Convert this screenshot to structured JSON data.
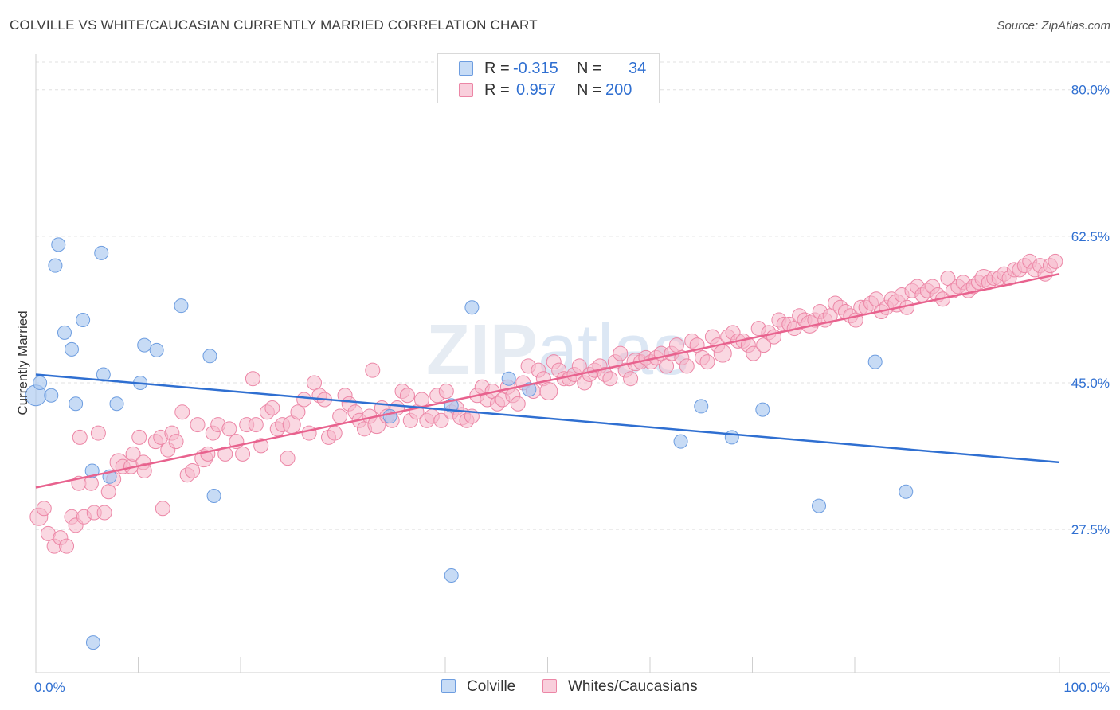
{
  "title": "COLVILLE VS WHITE/CAUCASIAN CURRENTLY MARRIED CORRELATION CHART",
  "source": "Source: ZipAtlas.com",
  "legend": {
    "r_label": "R =",
    "n_label": "N =",
    "rows": [
      {
        "r": "-0.315",
        "n": "34"
      },
      {
        "r": "0.957",
        "n": "200"
      }
    ]
  },
  "colors": {
    "blue_fill": "#a9c8f0",
    "blue_stroke": "#6d9de0",
    "blue_line": "#2f6fd1",
    "pink_fill": "#f5b8cb",
    "pink_stroke": "#ec86a6",
    "pink_line": "#e8628e",
    "axis_text": "#2f6fd1",
    "grid": "#e0e0e0"
  },
  "chart_data": {
    "type": "scatter",
    "ylabel": "Currently Married",
    "xlabel": "",
    "x_tick_labels": [
      "0.0%",
      "100.0%"
    ],
    "y_tick_labels": [
      "80.0%",
      "62.5%",
      "45.0%",
      "27.5%"
    ],
    "y_ticks": [
      80.0,
      62.5,
      45.0,
      27.5
    ],
    "xlim": [
      0,
      100
    ],
    "ylim": [
      10.4,
      83.3
    ],
    "grid": "horizontal dashed",
    "legend_position": "top-center",
    "watermark": "ZIPatlas",
    "series": [
      {
        "name": "Colville",
        "color": "blue",
        "trend": [
          [
            0,
            46.0
          ],
          [
            100,
            35.5
          ]
        ],
        "points": [
          [
            0.0,
            43.5
          ],
          [
            0.4,
            45.0
          ],
          [
            1.5,
            43.5
          ],
          [
            1.9,
            59.0
          ],
          [
            2.2,
            61.5
          ],
          [
            2.8,
            51.0
          ],
          [
            3.5,
            49.0
          ],
          [
            3.9,
            42.5
          ],
          [
            4.6,
            52.5
          ],
          [
            5.5,
            34.5
          ],
          [
            5.6,
            14.0
          ],
          [
            6.4,
            60.5
          ],
          [
            6.6,
            46.0
          ],
          [
            7.2,
            33.8
          ],
          [
            7.9,
            42.5
          ],
          [
            10.2,
            45.0
          ],
          [
            10.6,
            49.5
          ],
          [
            11.8,
            48.9
          ],
          [
            14.2,
            54.2
          ],
          [
            17.0,
            48.2
          ],
          [
            17.4,
            31.5
          ],
          [
            34.6,
            41.0
          ],
          [
            40.6,
            42.3
          ],
          [
            40.6,
            22.0
          ],
          [
            42.6,
            54.0
          ],
          [
            46.2,
            45.5
          ],
          [
            48.2,
            44.2
          ],
          [
            63.0,
            38.0
          ],
          [
            65.0,
            42.2
          ],
          [
            68.0,
            38.5
          ],
          [
            71.0,
            41.8
          ],
          [
            76.5,
            30.3
          ],
          [
            82.0,
            47.5
          ],
          [
            85.0,
            32.0
          ]
        ]
      },
      {
        "name": "Whites/Caucasians",
        "color": "pink",
        "trend": [
          [
            0,
            32.5
          ],
          [
            100,
            58.0
          ]
        ],
        "points": [
          [
            0.3,
            29.0
          ],
          [
            0.8,
            30.0
          ],
          [
            1.2,
            27.0
          ],
          [
            1.8,
            25.5
          ],
          [
            2.4,
            26.5
          ],
          [
            3.0,
            25.5
          ],
          [
            3.5,
            29.0
          ],
          [
            3.9,
            28.0
          ],
          [
            4.2,
            33.0
          ],
          [
            4.3,
            38.5
          ],
          [
            4.7,
            29.0
          ],
          [
            5.4,
            33.0
          ],
          [
            5.7,
            29.5
          ],
          [
            6.1,
            39.0
          ],
          [
            6.7,
            29.5
          ],
          [
            7.1,
            32.0
          ],
          [
            7.6,
            33.5
          ],
          [
            8.1,
            35.5
          ],
          [
            8.5,
            35.0
          ],
          [
            9.3,
            35.0
          ],
          [
            9.5,
            36.5
          ],
          [
            10.1,
            38.5
          ],
          [
            10.5,
            35.5
          ],
          [
            10.6,
            34.5
          ],
          [
            11.7,
            38.0
          ],
          [
            12.2,
            38.5
          ],
          [
            12.4,
            30.0
          ],
          [
            12.9,
            37.0
          ],
          [
            13.3,
            39.0
          ],
          [
            13.7,
            38.0
          ],
          [
            14.3,
            41.5
          ],
          [
            14.8,
            34.0
          ],
          [
            15.3,
            34.5
          ],
          [
            15.8,
            40.0
          ],
          [
            16.4,
            36.0
          ],
          [
            16.8,
            36.5
          ],
          [
            17.3,
            39.0
          ],
          [
            17.8,
            40.0
          ],
          [
            18.5,
            36.5
          ],
          [
            18.9,
            39.5
          ],
          [
            19.6,
            38.0
          ],
          [
            20.2,
            36.5
          ],
          [
            20.6,
            40.0
          ],
          [
            21.2,
            45.5
          ],
          [
            21.5,
            40.0
          ],
          [
            22.0,
            37.5
          ],
          [
            22.6,
            41.5
          ],
          [
            23.1,
            42.0
          ],
          [
            23.6,
            39.5
          ],
          [
            24.1,
            40.0
          ],
          [
            24.6,
            36.0
          ],
          [
            25.0,
            40.0
          ],
          [
            25.6,
            41.5
          ],
          [
            26.2,
            43.0
          ],
          [
            26.7,
            39.0
          ],
          [
            27.2,
            45.0
          ],
          [
            27.7,
            43.5
          ],
          [
            28.2,
            43.0
          ],
          [
            28.6,
            38.5
          ],
          [
            29.2,
            39.0
          ],
          [
            29.7,
            41.0
          ],
          [
            30.2,
            43.5
          ],
          [
            30.6,
            42.5
          ],
          [
            31.2,
            41.5
          ],
          [
            31.6,
            40.5
          ],
          [
            32.1,
            39.5
          ],
          [
            32.6,
            41.0
          ],
          [
            32.9,
            46.5
          ],
          [
            33.3,
            40.0
          ],
          [
            33.8,
            42.0
          ],
          [
            34.3,
            41.0
          ],
          [
            34.8,
            40.5
          ],
          [
            35.3,
            42.0
          ],
          [
            35.8,
            44.0
          ],
          [
            36.3,
            43.5
          ],
          [
            36.6,
            40.5
          ],
          [
            37.2,
            41.5
          ],
          [
            37.7,
            43.0
          ],
          [
            38.2,
            40.5
          ],
          [
            38.7,
            41.0
          ],
          [
            39.2,
            43.5
          ],
          [
            39.6,
            40.5
          ],
          [
            40.1,
            44.0
          ],
          [
            40.6,
            41.5
          ],
          [
            41.1,
            42.0
          ],
          [
            41.6,
            41.0
          ],
          [
            42.1,
            40.5
          ],
          [
            42.6,
            41.0
          ],
          [
            43.1,
            43.5
          ],
          [
            43.6,
            44.5
          ],
          [
            44.1,
            43.0
          ],
          [
            44.6,
            44.0
          ],
          [
            45.1,
            42.5
          ],
          [
            45.6,
            43.0
          ],
          [
            46.1,
            44.5
          ],
          [
            46.6,
            43.5
          ],
          [
            47.1,
            42.5
          ],
          [
            47.6,
            45.0
          ],
          [
            48.1,
            47.0
          ],
          [
            48.6,
            44.0
          ],
          [
            49.1,
            46.5
          ],
          [
            49.6,
            45.5
          ],
          [
            50.1,
            44.0
          ],
          [
            50.6,
            47.5
          ],
          [
            51.1,
            46.5
          ],
          [
            51.6,
            45.5
          ],
          [
            52.1,
            45.5
          ],
          [
            52.6,
            46.0
          ],
          [
            53.1,
            47.0
          ],
          [
            53.6,
            45.0
          ],
          [
            54.1,
            46.0
          ],
          [
            54.6,
            46.5
          ],
          [
            55.1,
            47.0
          ],
          [
            55.6,
            46.0
          ],
          [
            56.1,
            45.5
          ],
          [
            56.6,
            47.5
          ],
          [
            57.1,
            48.5
          ],
          [
            57.6,
            46.5
          ],
          [
            58.1,
            45.5
          ],
          [
            58.6,
            47.5
          ],
          [
            59.1,
            47.5
          ],
          [
            59.6,
            48.0
          ],
          [
            60.1,
            47.5
          ],
          [
            60.6,
            48.0
          ],
          [
            61.1,
            48.5
          ],
          [
            61.6,
            47.0
          ],
          [
            62.1,
            48.5
          ],
          [
            62.6,
            49.5
          ],
          [
            63.1,
            48.0
          ],
          [
            63.6,
            47.0
          ],
          [
            64.1,
            50.0
          ],
          [
            64.6,
            49.5
          ],
          [
            65.1,
            48.0
          ],
          [
            65.6,
            47.5
          ],
          [
            66.1,
            50.5
          ],
          [
            66.6,
            49.5
          ],
          [
            67.1,
            48.5
          ],
          [
            67.6,
            50.5
          ],
          [
            68.1,
            51.0
          ],
          [
            68.6,
            50.0
          ],
          [
            69.1,
            50.0
          ],
          [
            69.6,
            49.5
          ],
          [
            70.1,
            48.5
          ],
          [
            70.6,
            51.5
          ],
          [
            71.1,
            49.5
          ],
          [
            71.6,
            51.0
          ],
          [
            72.1,
            50.5
          ],
          [
            72.6,
            52.5
          ],
          [
            73.1,
            52.0
          ],
          [
            73.6,
            52.0
          ],
          [
            74.1,
            51.5
          ],
          [
            74.6,
            53.0
          ],
          [
            75.1,
            52.5
          ],
          [
            75.6,
            52.0
          ],
          [
            76.1,
            52.5
          ],
          [
            76.6,
            53.5
          ],
          [
            77.1,
            52.5
          ],
          [
            77.6,
            53.0
          ],
          [
            78.1,
            54.5
          ],
          [
            78.6,
            54.0
          ],
          [
            79.1,
            53.5
          ],
          [
            79.6,
            53.0
          ],
          [
            80.1,
            52.5
          ],
          [
            80.6,
            54.0
          ],
          [
            81.1,
            54.0
          ],
          [
            81.6,
            54.5
          ],
          [
            82.1,
            55.0
          ],
          [
            82.6,
            53.5
          ],
          [
            83.1,
            54.0
          ],
          [
            83.6,
            55.0
          ],
          [
            84.1,
            54.5
          ],
          [
            84.6,
            55.5
          ],
          [
            85.1,
            54.0
          ],
          [
            85.6,
            56.0
          ],
          [
            86.1,
            56.5
          ],
          [
            86.6,
            55.5
          ],
          [
            87.1,
            56.0
          ],
          [
            87.6,
            56.5
          ],
          [
            88.1,
            55.5
          ],
          [
            88.6,
            55.0
          ],
          [
            89.1,
            57.5
          ],
          [
            89.6,
            56.0
          ],
          [
            90.1,
            56.5
          ],
          [
            90.6,
            57.0
          ],
          [
            91.1,
            56.0
          ],
          [
            91.6,
            56.5
          ],
          [
            92.1,
            57.0
          ],
          [
            92.6,
            57.5
          ],
          [
            93.1,
            57.0
          ],
          [
            93.6,
            57.5
          ],
          [
            94.1,
            57.5
          ],
          [
            94.6,
            58.0
          ],
          [
            95.1,
            57.5
          ],
          [
            95.6,
            58.5
          ],
          [
            96.1,
            58.5
          ],
          [
            96.6,
            59.0
          ],
          [
            97.1,
            59.5
          ],
          [
            97.6,
            58.5
          ],
          [
            98.1,
            59.0
          ],
          [
            98.6,
            58.0
          ],
          [
            99.1,
            59.0
          ],
          [
            99.6,
            59.5
          ]
        ]
      }
    ]
  }
}
